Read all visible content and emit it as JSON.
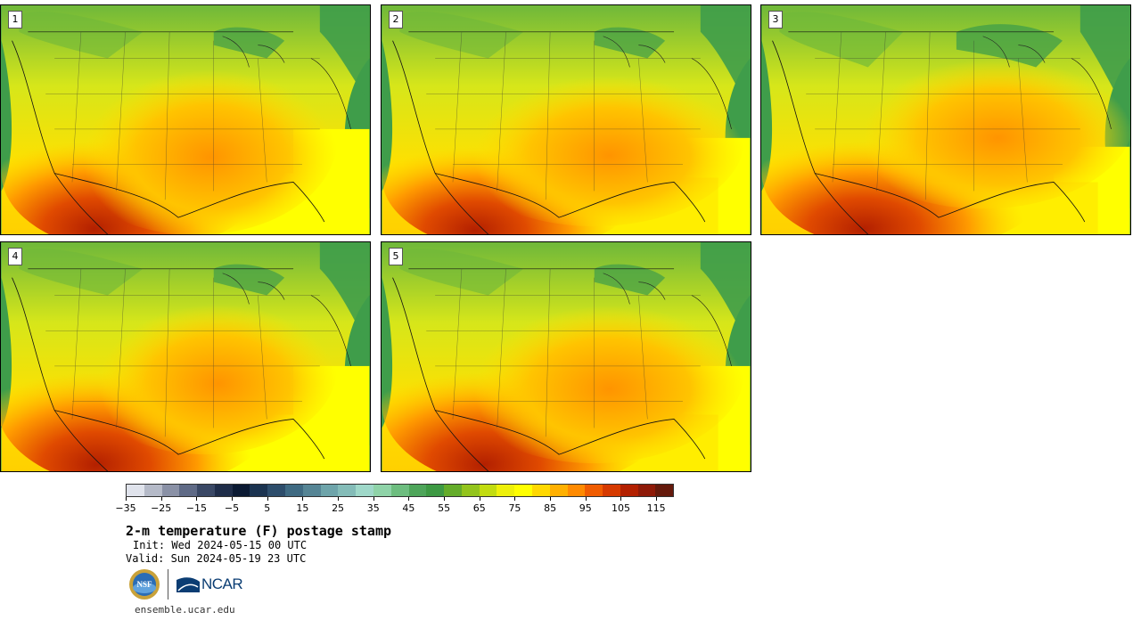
{
  "panels": [
    {
      "label": "1"
    },
    {
      "label": "2"
    },
    {
      "label": "3"
    },
    {
      "label": "4"
    },
    {
      "label": "5"
    }
  ],
  "colorbar": {
    "colors": [
      "#e0e3ec",
      "#b5bac8",
      "#8a91a6",
      "#5f6a86",
      "#3a4865",
      "#1f2d49",
      "#0b1a33",
      "#1b3350",
      "#2d4d6b",
      "#3f6a82",
      "#568595",
      "#6ea4aa",
      "#84bcb8",
      "#9fd8c9",
      "#8fd3a8",
      "#6dbd7f",
      "#4ea55a",
      "#3d9943",
      "#64ac2a",
      "#93c41c",
      "#c2dc10",
      "#eef00a",
      "#ffff00",
      "#ffd800",
      "#ffb000",
      "#ff8a00",
      "#f05c00",
      "#d63a00",
      "#b32000",
      "#8e1a08",
      "#651a0c"
    ],
    "tick_labels": [
      "−35",
      "−25",
      "−15",
      "−5",
      "5",
      "15",
      "25",
      "35",
      "45",
      "55",
      "65",
      "75",
      "85",
      "95",
      "105",
      "115"
    ]
  },
  "title": "2-m temperature (F) postage stamp",
  "init_text": "Init: Wed 2024-05-15 00 UTC",
  "valid_text": "Valid: Sun 2024-05-19 23 UTC",
  "logos": {
    "nsf": "NSF",
    "ncar": "NCAR"
  },
  "footer_url": "ensemble.ucar.edu"
}
